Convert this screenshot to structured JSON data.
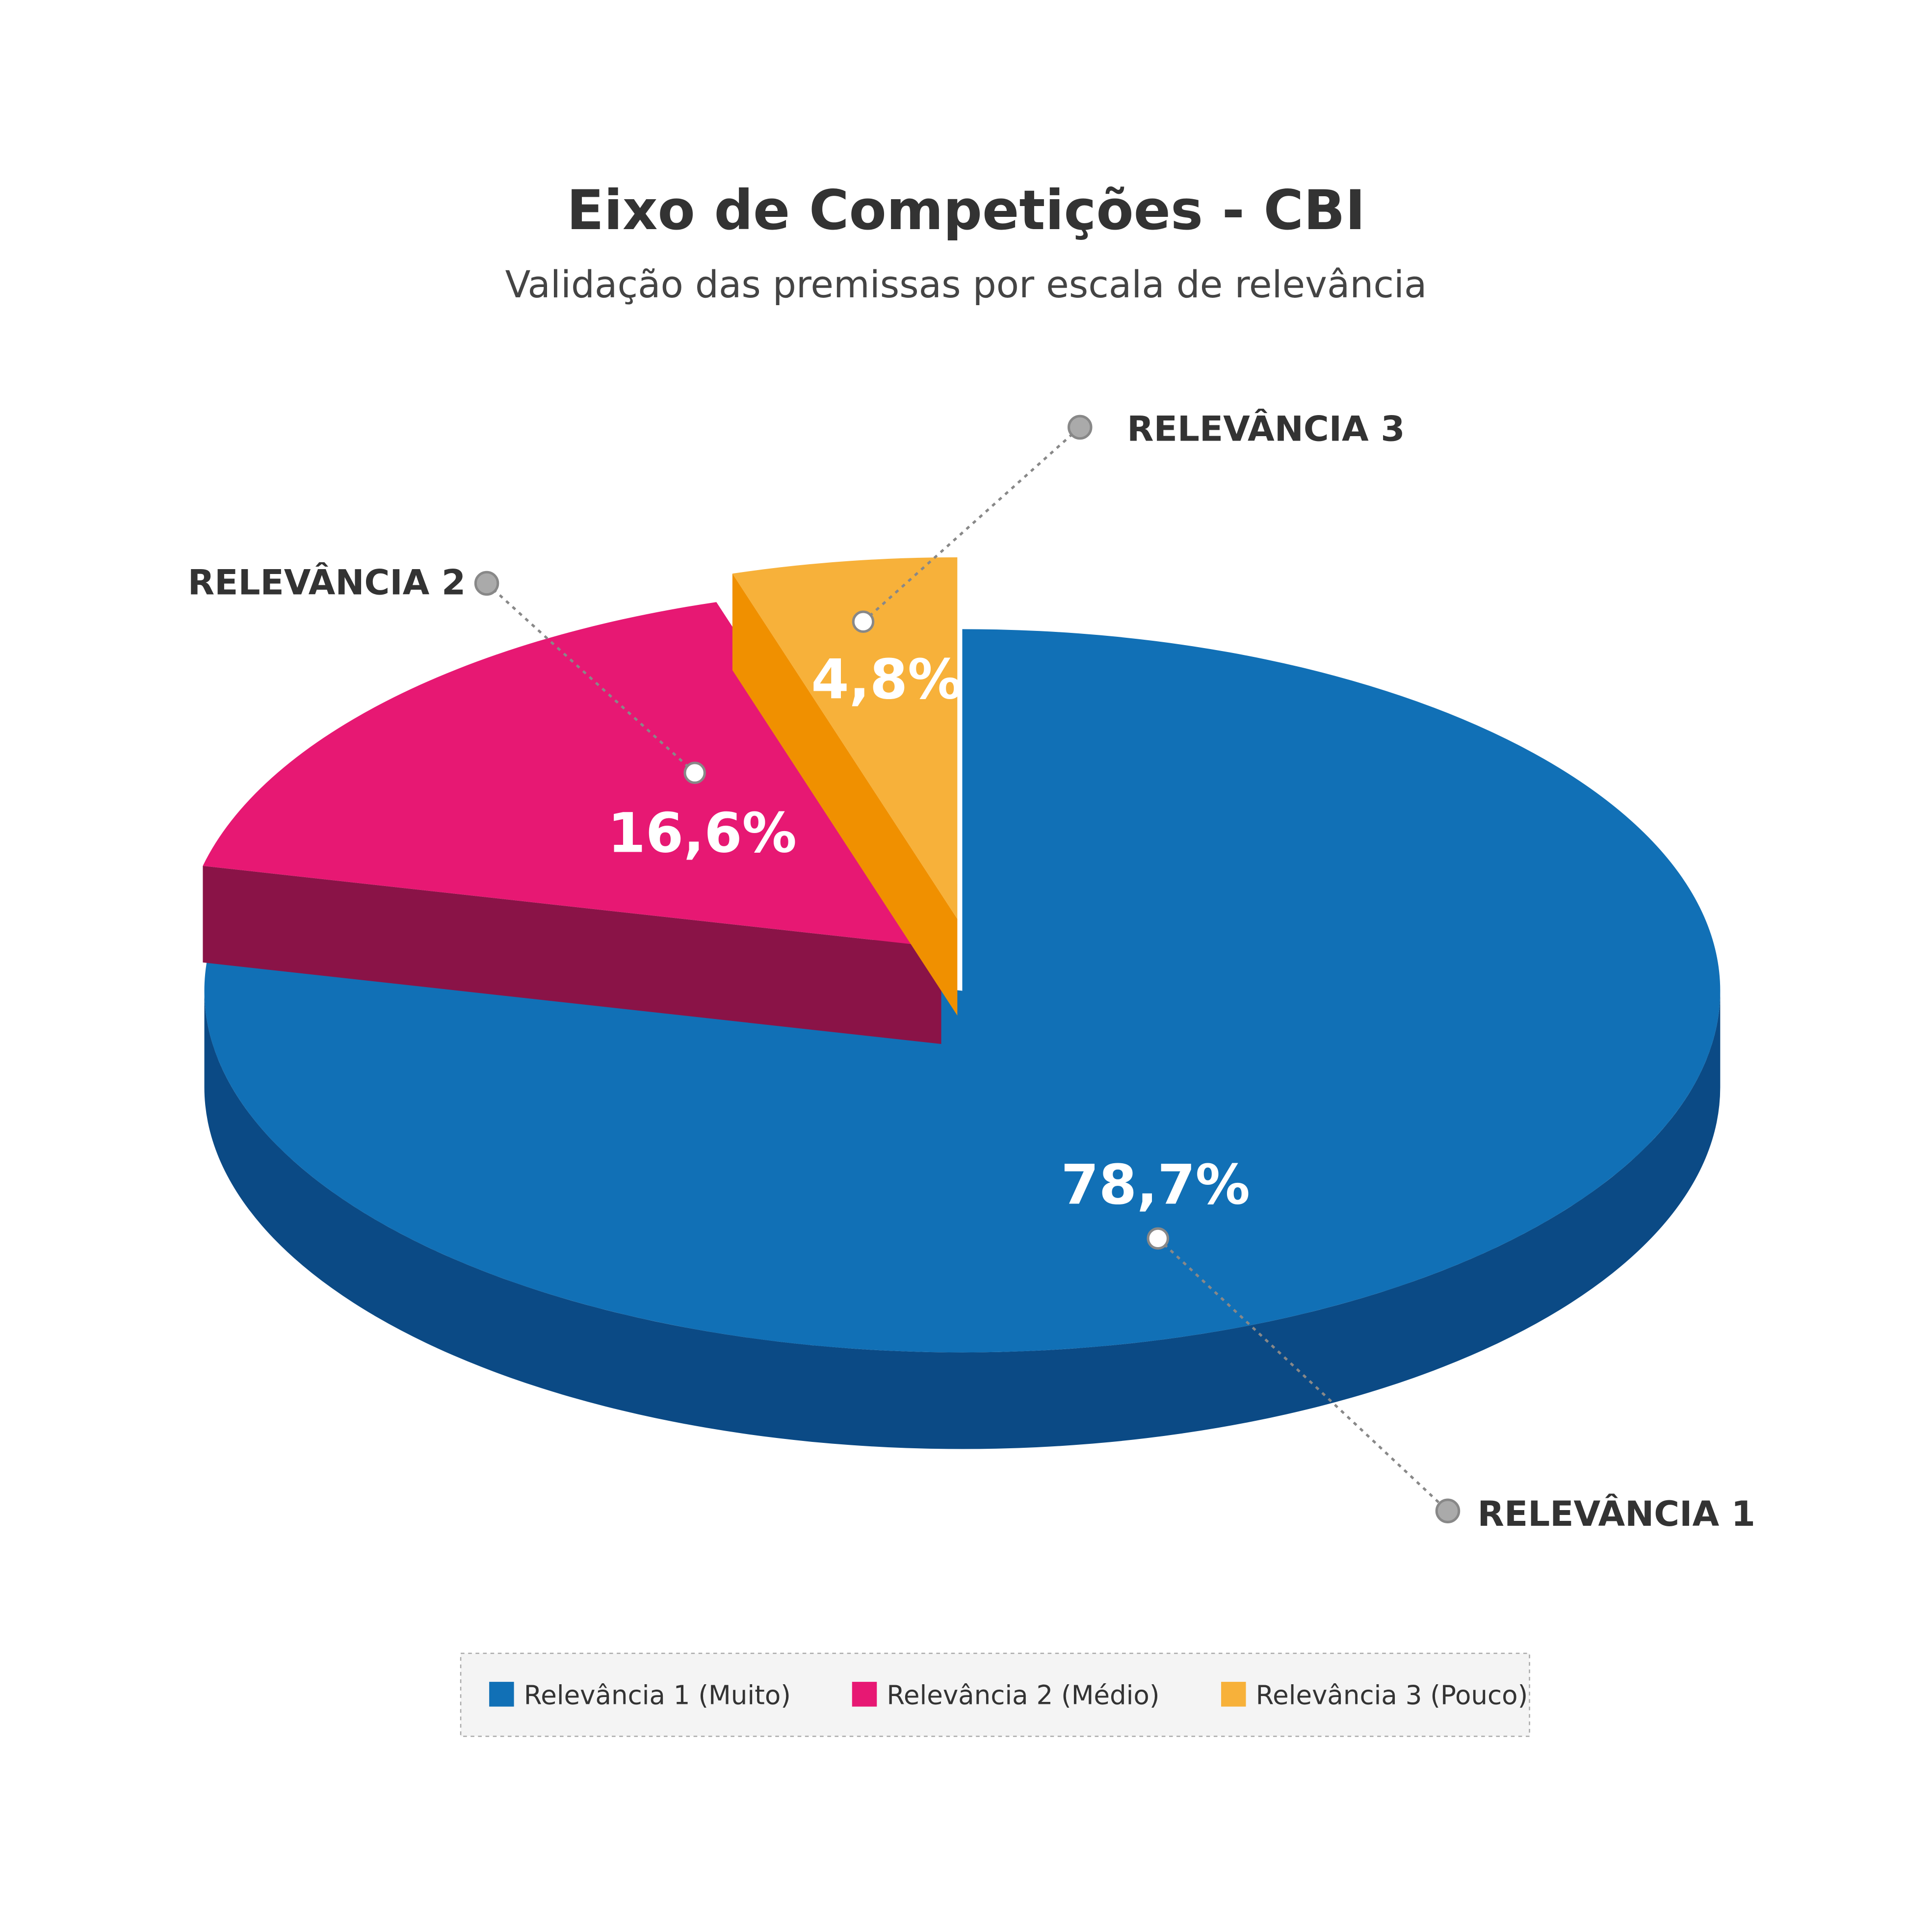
{
  "chart_data": {
    "type": "pie3d",
    "title": "Eixo de Competições - CBI",
    "subtitle": "Validação das premissas por escala de relevância",
    "categories": [
      "Relevância 1 (Muito)",
      "Relevância 2 (Médio)",
      "Relevância 3 (Pouco)"
    ],
    "callouts": [
      "RELEVÂNCIA 1",
      "RELEVÂNCIA 2",
      "RELEVÂNCIA 3"
    ],
    "values": [
      78.7,
      16.6,
      4.8
    ],
    "value_labels": [
      "78,7%",
      "16,6%",
      "4,8%"
    ],
    "colors": [
      "#1170b6",
      "#e71873",
      "#f7b13a"
    ],
    "side_colors": [
      "#0b4a85",
      "#8a1347",
      "#f09000"
    ],
    "legend": "bottom"
  }
}
